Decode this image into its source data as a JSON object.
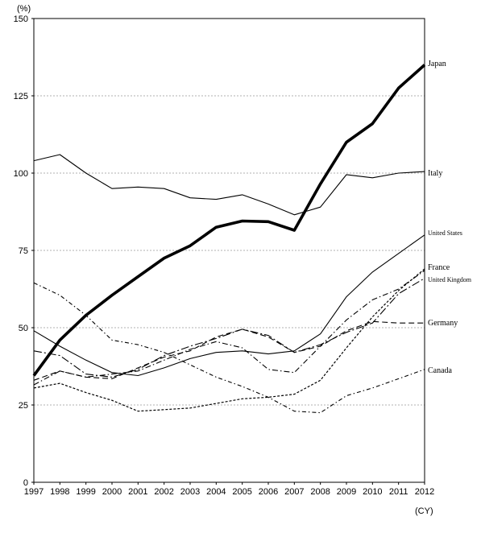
{
  "chart_data": {
    "type": "line",
    "title": "",
    "ylabel": "(%)",
    "xlabel": "(CY)",
    "ylim": [
      0,
      150
    ],
    "yticks": [
      0,
      25,
      50,
      75,
      100,
      125,
      150
    ],
    "grid": true,
    "legend": "inline labels at right end of lines",
    "categories": [
      "1997",
      "1998",
      "1999",
      "2000",
      "2001",
      "2002",
      "2003",
      "2004",
      "2005",
      "2006",
      "2007",
      "2008",
      "2009",
      "2010",
      "2011",
      "2012"
    ],
    "series": [
      {
        "name": "Japan",
        "style": "thick-solid",
        "color": "#000000",
        "values": [
          34.5,
          46,
          54,
          60.5,
          66.5,
          72.5,
          76.5,
          82.5,
          84.5,
          84.3,
          81.5,
          96.5,
          110,
          116,
          127.5,
          135
        ]
      },
      {
        "name": "Italy",
        "style": "solid",
        "color": "#000000",
        "values": [
          104,
          106,
          100,
          95,
          95.5,
          95,
          92,
          91.5,
          93,
          90,
          86.5,
          89,
          99.5,
          98.5,
          100,
          100.5
        ]
      },
      {
        "name": "United States",
        "style": "solid",
        "color": "#000000",
        "values": [
          49,
          44,
          39.5,
          35.5,
          34.5,
          37,
          40,
          42,
          42.5,
          41.5,
          42.5,
          48,
          60,
          68,
          74,
          80
        ]
      },
      {
        "name": "France",
        "style": "dash-dot",
        "color": "#000000",
        "values": [
          31.5,
          36,
          34,
          35,
          36,
          39.5,
          43,
          45.5,
          43.5,
          36.5,
          35.5,
          44,
          52.5,
          59,
          62.5,
          68.5
        ]
      },
      {
        "name": "United Kingdom",
        "style": "long-dash-dot",
        "color": "#000000",
        "values": [
          42.5,
          41,
          35,
          34,
          36.5,
          41,
          44,
          46.5,
          49.5,
          47.5,
          42,
          44.5,
          48.5,
          51.5,
          61,
          66
        ]
      },
      {
        "name": "Germany",
        "style": "dashed",
        "color": "#000000",
        "values": [
          33,
          36,
          34,
          33.5,
          37,
          40.5,
          42.5,
          47,
          49.5,
          47,
          42,
          44,
          49,
          52,
          51.5,
          51.5
        ]
      },
      {
        "name": "Canada",
        "style": "dash-dot-fine",
        "color": "#000000",
        "values": [
          64.5,
          60.5,
          54,
          46,
          44.5,
          42,
          38,
          34,
          31,
          27.5,
          23,
          22.5,
          28,
          30.5,
          33.5,
          36.5
        ]
      },
      {
        "name": "",
        "style": "dotted",
        "color": "#000000",
        "values": [
          30.5,
          32,
          29,
          26.5,
          23,
          23.5,
          24,
          25.5,
          27,
          27.5,
          28.5,
          33,
          43.5,
          53.5,
          62,
          69
        ]
      }
    ]
  }
}
